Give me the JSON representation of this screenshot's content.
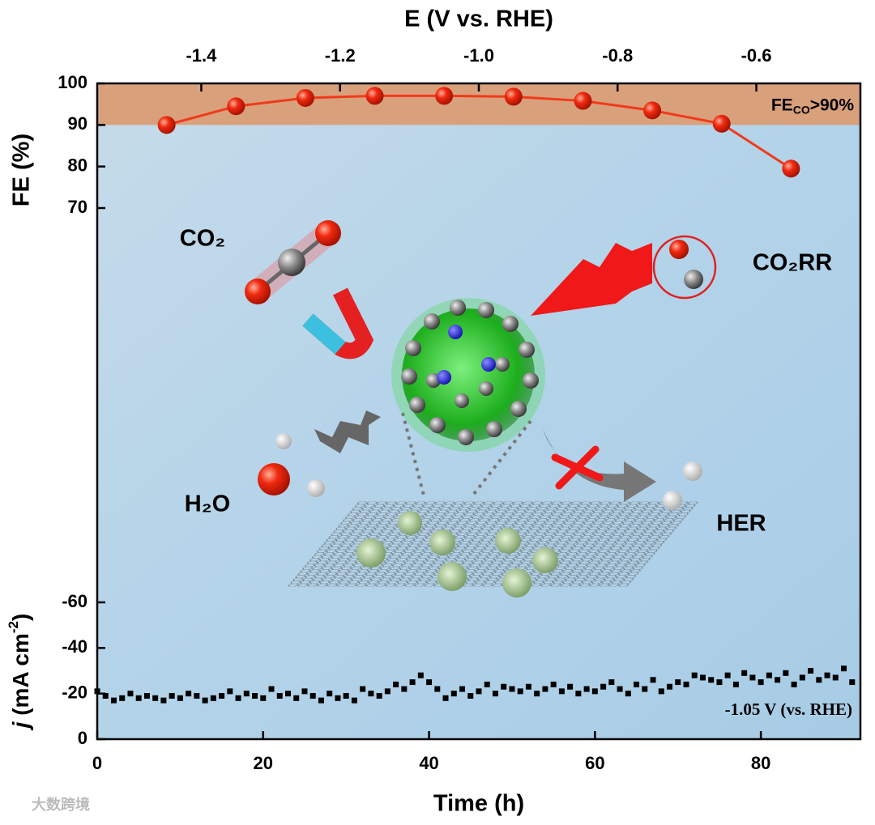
{
  "chart_data": [
    {
      "type": "line",
      "xlabel": "E (V vs. RHE)",
      "ylabel": "FE (%)",
      "x": [
        -1.45,
        -1.35,
        -1.25,
        -1.15,
        -1.05,
        -0.95,
        -0.85,
        -0.75,
        -0.65,
        -0.55
      ],
      "values": [
        90,
        94.5,
        96.5,
        97,
        97,
        96.8,
        95.8,
        93.5,
        90.3,
        79.5
      ],
      "color": "#f03a1a",
      "xlim": [
        -1.55,
        -0.45
      ],
      "xticks": [
        -1.4,
        -1.2,
        {
          "value": -1.0,
          "label": "-1.0"
        },
        -0.8,
        -0.6
      ],
      "ylim": [
        70,
        100
      ],
      "yticks": [
        70,
        80,
        90,
        100
      ],
      "band": [
        90,
        100
      ],
      "band_color": "#d9a07c",
      "band_label": {
        "main": "FE",
        "sub": "CO",
        "rest": ">90%"
      }
    },
    {
      "type": "scatter",
      "xlabel": "Time (h)",
      "ylabel": {
        "italic": "j",
        "text": " (mA cm",
        "sup": "-2",
        "end": ")"
      },
      "annotation": "-1.05 V (vs. RHE)",
      "x": [
        0,
        1,
        2,
        3,
        4,
        5,
        6,
        7,
        8,
        9,
        10,
        11,
        12,
        13,
        14,
        15,
        16,
        17,
        18,
        19,
        20,
        21,
        22,
        23,
        24,
        25,
        26,
        27,
        28,
        29,
        30,
        31,
        32,
        33,
        34,
        35,
        36,
        37,
        38,
        39,
        40,
        41,
        42,
        43,
        44,
        45,
        46,
        47,
        48,
        49,
        50,
        51,
        52,
        53,
        54,
        55,
        56,
        57,
        58,
        59,
        60,
        61,
        62,
        63,
        64,
        65,
        66,
        67,
        68,
        69,
        70,
        71,
        72,
        73,
        74,
        75,
        76,
        77,
        78,
        79,
        80,
        81,
        82,
        83,
        84,
        85,
        86,
        87,
        88,
        89,
        90,
        91
      ],
      "values": [
        -21,
        -19,
        -17,
        -18,
        -20,
        -18,
        -19,
        -18,
        -17,
        -19,
        -18,
        -20,
        -19,
        -17,
        -18,
        -19,
        -21,
        -18,
        -20,
        -19,
        -18,
        -22,
        -19,
        -20,
        -18,
        -21,
        -19,
        -17,
        -20,
        -18,
        -19,
        -17,
        -22,
        -20,
        -19,
        -21,
        -24,
        -22,
        -25,
        -28,
        -25,
        -22,
        -18,
        -20,
        -22,
        -19,
        -21,
        -24,
        -20,
        -23,
        -22,
        -21,
        -23,
        -20,
        -22,
        -24,
        -21,
        -23,
        -20,
        -22,
        -21,
        -23,
        -25,
        -22,
        -20,
        -24,
        -22,
        -26,
        -21,
        -23,
        -25,
        -24,
        -28,
        -27,
        -26,
        -25,
        -28,
        -24,
        -29,
        -27,
        -25,
        -28,
        -26,
        -29,
        -24,
        -27,
        -30,
        -26,
        -28,
        -27,
        -31,
        -25
      ],
      "color": "#000000",
      "xlim": [
        0,
        92
      ],
      "xticks": [
        0,
        20,
        40,
        60,
        80
      ],
      "ylim": [
        0,
        -60
      ],
      "yticks": [
        0,
        -20,
        -40,
        -60
      ]
    }
  ],
  "illustration": {
    "co2": "CO₂",
    "co2rr": "CO₂RR",
    "h2o": "H₂O",
    "her": "HER"
  },
  "watermark": "大数跨境"
}
